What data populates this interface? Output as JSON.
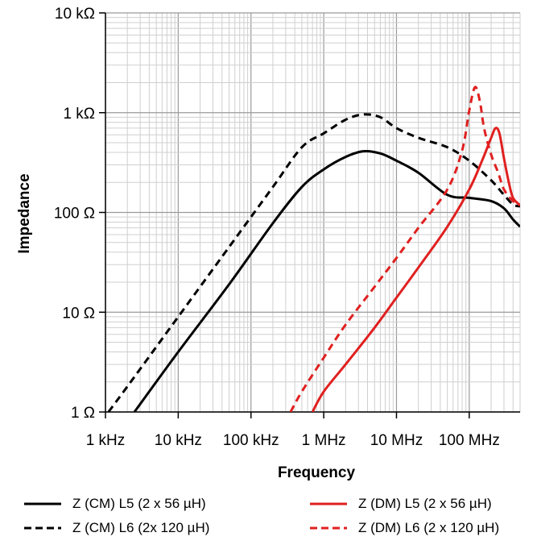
{
  "chart_data": {
    "type": "line",
    "title": "",
    "xlabel": "Frequency",
    "ylabel": "Impedance",
    "xscale": "log",
    "yscale": "log",
    "xlim": [
      1000,
      500000000
    ],
    "ylim": [
      1,
      10000
    ],
    "grid": true,
    "legend_position": "bottom",
    "x_tick_labels": [
      "1 kHz",
      "10 kHz",
      "100 kHz",
      "1 MHz",
      "10 MHz",
      "100 MHz"
    ],
    "y_tick_labels": [
      "1 Ω",
      "10 Ω",
      "100 Ω",
      "1 kΩ",
      "10 kΩ"
    ],
    "series": [
      {
        "name": "Z (CM) L5 (2 x 56 µH)",
        "color": "#000000",
        "dash": "solid",
        "x": [
          2500,
          10000,
          50000,
          200000,
          500000,
          1000000,
          2000000,
          3500000,
          6000000,
          10000000,
          20000000,
          50000000,
          100000000,
          200000000,
          300000000,
          400000000,
          500000000
        ],
        "y": [
          1,
          4,
          19,
          78,
          180,
          270,
          360,
          410,
          390,
          330,
          250,
          150,
          140,
          130,
          110,
          85,
          72
        ]
      },
      {
        "name": "Z (CM) L6 (2x 120 µH)",
        "color": "#000000",
        "dash": "dashed",
        "x": [
          1100,
          2000,
          5000,
          10000,
          50000,
          200000,
          500000,
          1000000,
          2000000,
          3500000,
          6000000,
          10000000,
          20000000,
          50000000,
          100000000,
          200000000,
          300000000,
          400000000,
          500000000
        ],
        "y": [
          1,
          1.8,
          4.5,
          9,
          45,
          180,
          450,
          620,
          850,
          960,
          900,
          700,
          560,
          450,
          330,
          210,
          150,
          120,
          115
        ]
      },
      {
        "name": "Z (DM) L5 (2 x 56 µH)",
        "color": "#e02020",
        "dash": "solid",
        "x": [
          700000,
          1000000,
          2000000,
          5000000,
          10000000,
          20000000,
          50000000,
          100000000,
          150000000,
          200000000,
          230000000,
          260000000,
          300000000,
          350000000,
          400000000,
          500000000
        ],
        "y": [
          1,
          1.6,
          3,
          7,
          14,
          28,
          72,
          170,
          330,
          560,
          700,
          620,
          350,
          200,
          140,
          118
        ]
      },
      {
        "name": "Z (DM) L6 (2 x 120 µH)",
        "color": "#e02020",
        "dash": "dashed",
        "x": [
          350000,
          500000,
          1000000,
          2000000,
          5000000,
          10000000,
          20000000,
          50000000,
          80000000,
          100000000,
          120000000,
          140000000,
          160000000,
          200000000,
          250000000,
          300000000,
          400000000,
          500000000
        ],
        "y": [
          1,
          1.6,
          3.5,
          7.5,
          18,
          35,
          70,
          170,
          420,
          1050,
          1800,
          1300,
          700,
          380,
          250,
          170,
          130,
          118
        ]
      }
    ]
  }
}
